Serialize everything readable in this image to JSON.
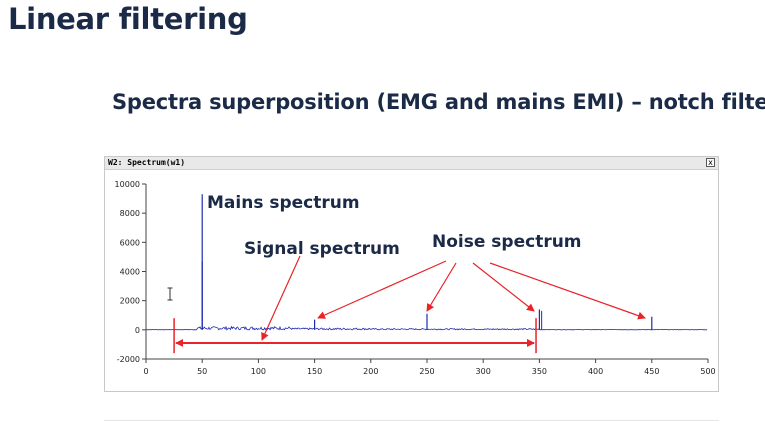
{
  "header": {
    "title": "Linear filtering",
    "subtitle": "Spectra superposition (EMG and mains EMI) – notch filters"
  },
  "window": {
    "title": "W2: Spectrum(w1)",
    "close_label": "x"
  },
  "annotations": {
    "mains": "Mains spectrum",
    "signal": "Signal spectrum",
    "noise": "Noise spectrum"
  },
  "cursor_icon": "text-cursor-icon",
  "colors": {
    "spectrum": "#1f2bb0",
    "annotation": "#e8232a",
    "title": "#1b2a47"
  },
  "chart_data": {
    "type": "line",
    "title": "",
    "xlabel": "",
    "ylabel": "",
    "xlim": [
      0,
      500
    ],
    "ylim": [
      -2000,
      10000
    ],
    "xticks": [
      0,
      50,
      100,
      150,
      200,
      250,
      300,
      350,
      400,
      450,
      500
    ],
    "yticks": [
      10000,
      8000,
      6000,
      4000,
      2000,
      0,
      -2000
    ],
    "peaks": [
      {
        "x": 50,
        "y": 9300
      },
      {
        "x": 50,
        "y": 4700
      },
      {
        "x": 150,
        "y": 700
      },
      {
        "x": 250,
        "y": 1100
      },
      {
        "x": 350,
        "y": 1400
      },
      {
        "x": 450,
        "y": 900
      }
    ],
    "signal_band_x": [
      25,
      347
    ],
    "signal_band_y": -900
  }
}
